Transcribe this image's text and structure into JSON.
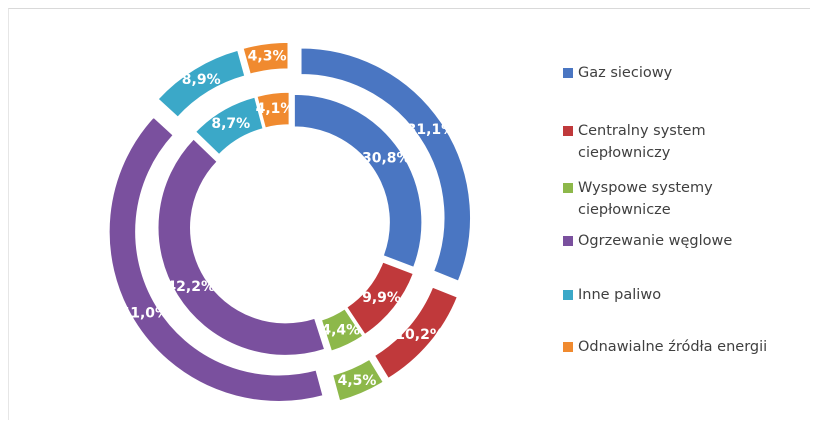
{
  "chart_data": {
    "type": "donut",
    "title": "",
    "rings": [
      {
        "ring": "inner",
        "values": [
          30.8,
          9.9,
          4.4,
          42.2,
          8.7,
          4.1
        ],
        "labels": [
          "30,8%",
          "9,9%",
          "4,4%",
          "42,2%",
          "8,7%",
          "4,1%"
        ]
      },
      {
        "ring": "outer",
        "values": [
          31.1,
          10.2,
          4.5,
          41.0,
          8.9,
          4.3
        ],
        "labels": [
          "31,1%",
          "10,2%",
          "4,5%",
          "41,0%",
          "8,9%",
          "4,3%"
        ]
      }
    ],
    "categories": [
      "Gaz sieciowy",
      "Centralny system\nciepłowniczy",
      "Wyspowe systemy\nciepłownicze",
      "Ogrzewanie węglowe",
      "Inne paliwo",
      "Odnawialne źródła energii"
    ],
    "colors": [
      "#4a76c2",
      "#c0393b",
      "#8db84a",
      "#7a509e",
      "#3ba8c8",
      "#f08a2f"
    ],
    "exploded": true,
    "legend_position": "right"
  }
}
